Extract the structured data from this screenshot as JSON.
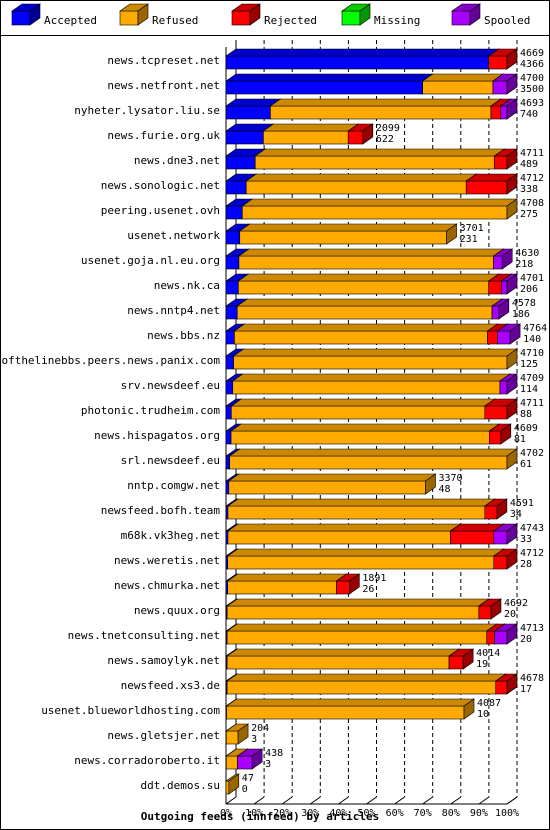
{
  "chart_data": {
    "type": "bar",
    "orientation": "horizontal",
    "stacked": true,
    "xlabel": "Outgoing feeds (innfeed) by articles",
    "xticks": [
      "0%",
      "10%",
      "20%",
      "30%",
      "40%",
      "50%",
      "60%",
      "70%",
      "80%",
      "90%",
      "100%"
    ],
    "legend_position": "top",
    "grid": true,
    "series": [
      {
        "name": "Accepted",
        "color": "#0000ff"
      },
      {
        "name": "Refused",
        "color": "#ffaa00"
      },
      {
        "name": "Rejected",
        "color": "#ff0000"
      },
      {
        "name": "Missing",
        "color": "#00ff00"
      },
      {
        "name": "Spooled",
        "color": "#aa00ff"
      }
    ],
    "rows": [
      {
        "name": "news.tcpreset.net",
        "offered": "4669",
        "accepted": "4366",
        "pct": {
          "Accepted": 93.5,
          "Refused": 0.0,
          "Rejected": 6.5,
          "Missing": 0,
          "Spooled": 0
        }
      },
      {
        "name": "news.netfront.net",
        "offered": "4700",
        "accepted": "3500",
        "pct": {
          "Accepted": 70.0,
          "Refused": 25.0,
          "Rejected": 0,
          "Missing": 0,
          "Spooled": 5.0
        }
      },
      {
        "name": "nyheter.lysator.liu.se",
        "offered": "4693",
        "accepted": "740",
        "pct": {
          "Accepted": 15.8,
          "Refused": 78.5,
          "Rejected": 3.5,
          "Missing": 0,
          "Spooled": 2.2
        }
      },
      {
        "name": "news.furie.org.uk",
        "offered": "2099",
        "accepted": "622",
        "pct": {
          "Accepted": 13.3,
          "Refused": 30.2,
          "Rejected": 5.2,
          "Missing": 0,
          "Spooled": 0
        }
      },
      {
        "name": "news.dne3.net",
        "offered": "4711",
        "accepted": "489",
        "pct": {
          "Accepted": 10.4,
          "Refused": 85.1,
          "Rejected": 4.5,
          "Missing": 0,
          "Spooled": 0
        }
      },
      {
        "name": "news.sonologic.net",
        "offered": "4712",
        "accepted": "338",
        "pct": {
          "Accepted": 7.2,
          "Refused": 78.3,
          "Rejected": 14.5,
          "Missing": 0,
          "Spooled": 0
        }
      },
      {
        "name": "peering.usenet.ovh",
        "offered": "4708",
        "accepted": "275",
        "pct": {
          "Accepted": 5.8,
          "Refused": 94.2,
          "Rejected": 0,
          "Missing": 0,
          "Spooled": 0
        }
      },
      {
        "name": "usenet.network",
        "offered": "3701",
        "accepted": "231",
        "pct": {
          "Accepted": 4.9,
          "Refused": 73.6,
          "Rejected": 0,
          "Missing": 0,
          "Spooled": 0
        }
      },
      {
        "name": "usenet.goja.nl.eu.org",
        "offered": "4630",
        "accepted": "218",
        "pct": {
          "Accepted": 4.6,
          "Refused": 90.6,
          "Rejected": 0,
          "Missing": 0,
          "Spooled": 3.1
        }
      },
      {
        "name": "news.nk.ca",
        "offered": "4701",
        "accepted": "206",
        "pct": {
          "Accepted": 4.4,
          "Refused": 89.1,
          "Rejected": 4.5,
          "Missing": 0,
          "Spooled": 2.0
        }
      },
      {
        "name": "news.nntp4.net",
        "offered": "4578",
        "accepted": "186",
        "pct": {
          "Accepted": 4.0,
          "Refused": 90.7,
          "Rejected": 0,
          "Missing": 0,
          "Spooled": 2.4
        }
      },
      {
        "name": "news.bbs.nz",
        "offered": "4764",
        "accepted": "140",
        "pct": {
          "Accepted": 3.0,
          "Refused": 90.1,
          "Rejected": 3.5,
          "Missing": 0,
          "Spooled": 4.5
        }
      },
      {
        "name": "endofthelinebbs.peers.news.panix.com",
        "offered": "4710",
        "accepted": "125",
        "pct": {
          "Accepted": 2.7,
          "Refused": 97.3,
          "Rejected": 0,
          "Missing": 0,
          "Spooled": 0
        }
      },
      {
        "name": "srv.newsdeef.eu",
        "offered": "4709",
        "accepted": "114",
        "pct": {
          "Accepted": 2.4,
          "Refused": 95.1,
          "Rejected": 0,
          "Missing": 0,
          "Spooled": 2.5
        }
      },
      {
        "name": "photonic.trudheim.com",
        "offered": "4711",
        "accepted": "88",
        "pct": {
          "Accepted": 1.9,
          "Refused": 90.2,
          "Rejected": 7.9,
          "Missing": 0,
          "Spooled": 0
        }
      },
      {
        "name": "news.hispagatos.org",
        "offered": "4609",
        "accepted": "81",
        "pct": {
          "Accepted": 1.8,
          "Refused": 91.9,
          "Rejected": 4.1,
          "Missing": 0,
          "Spooled": 0
        }
      },
      {
        "name": "srl.newsdeef.eu",
        "offered": "4702",
        "accepted": "61",
        "pct": {
          "Accepted": 1.3,
          "Refused": 98.7,
          "Rejected": 0,
          "Missing": 0,
          "Spooled": 0
        }
      },
      {
        "name": "nntp.comgw.net",
        "offered": "3370",
        "accepted": "48",
        "pct": {
          "Accepted": 1.0,
          "Refused": 70.0,
          "Rejected": 0,
          "Missing": 0,
          "Spooled": 0
        }
      },
      {
        "name": "newsfeed.bofh.team",
        "offered": "4591",
        "accepted": "34",
        "pct": {
          "Accepted": 0.7,
          "Refused": 91.4,
          "Rejected": 4.3,
          "Missing": 0,
          "Spooled": 0
        }
      },
      {
        "name": "m68k.vk3heg.net",
        "offered": "4743",
        "accepted": "33",
        "pct": {
          "Accepted": 0.7,
          "Refused": 79.2,
          "Rejected": 15.4,
          "Missing": 0,
          "Spooled": 4.7
        }
      },
      {
        "name": "news.weretis.net",
        "offered": "4712",
        "accepted": "28",
        "pct": {
          "Accepted": 0.6,
          "Refused": 94.7,
          "Rejected": 4.7,
          "Missing": 0,
          "Spooled": 0
        }
      },
      {
        "name": "news.chmurka.net",
        "offered": "1891",
        "accepted": "26",
        "pct": {
          "Accepted": 0.6,
          "Refused": 38.7,
          "Rejected": 4.6,
          "Missing": 0,
          "Spooled": 0
        }
      },
      {
        "name": "news.quux.org",
        "offered": "4692",
        "accepted": "20",
        "pct": {
          "Accepted": 0.4,
          "Refused": 89.6,
          "Rejected": 4.3,
          "Missing": 0,
          "Spooled": 0
        }
      },
      {
        "name": "news.tnetconsulting.net",
        "offered": "4713",
        "accepted": "20",
        "pct": {
          "Accepted": 0.4,
          "Refused": 92.4,
          "Rejected": 2.8,
          "Missing": 0,
          "Spooled": 4.4
        }
      },
      {
        "name": "news.samoylyk.net",
        "offered": "4014",
        "accepted": "19",
        "pct": {
          "Accepted": 0.4,
          "Refused": 79.0,
          "Rejected": 5.0,
          "Missing": 0,
          "Spooled": 0
        }
      },
      {
        "name": "newsfeed.xs3.de",
        "offered": "4678",
        "accepted": "17",
        "pct": {
          "Accepted": 0.4,
          "Refused": 95.6,
          "Rejected": 4.0,
          "Missing": 0,
          "Spooled": 0
        }
      },
      {
        "name": "usenet.blueworldhosting.com",
        "offered": "4087",
        "accepted": "10",
        "pct": {
          "Accepted": 0.2,
          "Refused": 84.5,
          "Rejected": 0,
          "Missing": 0,
          "Spooled": 0
        }
      },
      {
        "name": "news.gletsjer.net",
        "offered": "204",
        "accepted": "3",
        "pct": {
          "Accepted": 0.1,
          "Refused": 4.2,
          "Rejected": 0,
          "Missing": 0,
          "Spooled": 0
        }
      },
      {
        "name": "news.corradoroberto.it",
        "offered": "438",
        "accepted": "3",
        "pct": {
          "Accepted": 0.1,
          "Refused": 4.0,
          "Rejected": 0,
          "Missing": 0,
          "Spooled": 5.2
        }
      },
      {
        "name": "ddt.demos.su",
        "offered": "47",
        "accepted": "0",
        "pct": {
          "Accepted": 0,
          "Refused": 1.0,
          "Rejected": 0,
          "Missing": 0,
          "Spooled": 0
        }
      }
    ]
  }
}
